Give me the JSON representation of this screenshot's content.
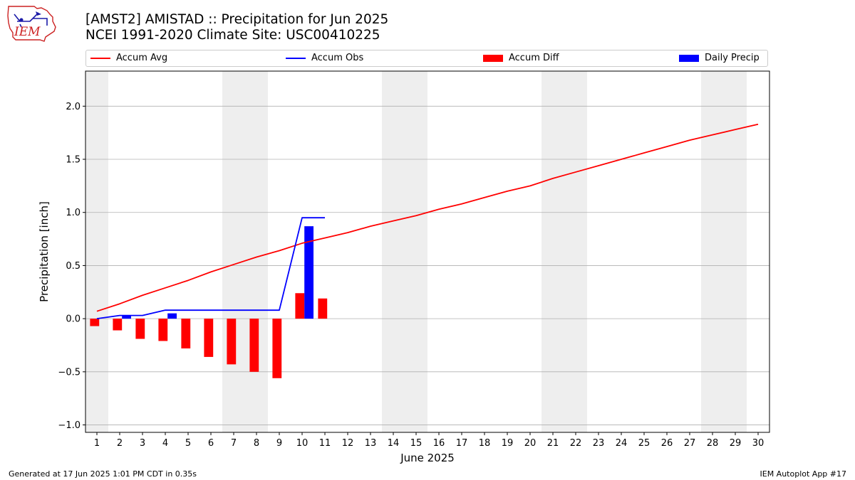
{
  "header": {
    "title_line1": "[AMST2] AMISTAD :: Precipitation for Jun 2025",
    "title_line2": "NCEI 1991-2020 Climate Site: USC00410225"
  },
  "logo": {
    "text": "IEM"
  },
  "footer": {
    "left": "Generated at 17 Jun 2025 1:01 PM CDT in 0.35s",
    "right": "IEM Autoplot App #17"
  },
  "colors": {
    "accum_avg": "#ff0000",
    "accum_obs": "#0000ff",
    "accum_diff": "#ff0000",
    "daily_precip": "#0000ff",
    "weekend_band": "#eeeeee",
    "grid": "#b0b0b0"
  },
  "chart_data": {
    "type": "line",
    "title": "[AMST2] AMISTAD :: Precipitation for Jun 2025",
    "xlabel": "June 2025",
    "ylabel": "Precipitation [inch]",
    "xlim": [
      0.5,
      30.5
    ],
    "ylim": [
      -1.07,
      2.33
    ],
    "x_ticks": [
      1,
      2,
      3,
      4,
      5,
      6,
      7,
      8,
      9,
      10,
      11,
      12,
      13,
      14,
      15,
      16,
      17,
      18,
      19,
      20,
      21,
      22,
      23,
      24,
      25,
      26,
      27,
      28,
      29,
      30
    ],
    "y_ticks": [
      -1.0,
      -0.5,
      0.0,
      0.5,
      1.0,
      1.5,
      2.0
    ],
    "y_tick_labels": [
      "−1.0",
      "−0.5",
      "0.0",
      "0.5",
      "1.0",
      "1.5",
      "2.0"
    ],
    "grid": "horizontal",
    "legend_placement": "top",
    "weekend_days": [
      1,
      7,
      8,
      14,
      15,
      21,
      22,
      28,
      29
    ],
    "series": [
      {
        "name": "Accum Avg",
        "kind": "line",
        "x": [
          1,
          2,
          3,
          4,
          5,
          6,
          7,
          8,
          9,
          10,
          11,
          12,
          13,
          14,
          15,
          16,
          17,
          18,
          19,
          20,
          21,
          22,
          23,
          24,
          25,
          26,
          27,
          28,
          29,
          30
        ],
        "values": [
          0.07,
          0.14,
          0.22,
          0.29,
          0.36,
          0.44,
          0.51,
          0.58,
          0.64,
          0.71,
          0.76,
          0.81,
          0.87,
          0.92,
          0.97,
          1.03,
          1.08,
          1.14,
          1.2,
          1.25,
          1.32,
          1.38,
          1.44,
          1.5,
          1.56,
          1.62,
          1.68,
          1.73,
          1.78,
          1.83
        ]
      },
      {
        "name": "Accum Obs",
        "kind": "line",
        "x": [
          1,
          2,
          3,
          4,
          5,
          6,
          7,
          8,
          9,
          10,
          11
        ],
        "values": [
          0.0,
          0.03,
          0.03,
          0.08,
          0.08,
          0.08,
          0.08,
          0.08,
          0.08,
          0.95,
          0.95
        ]
      },
      {
        "name": "Accum Diff",
        "kind": "bar",
        "x": [
          1,
          2,
          3,
          4,
          5,
          6,
          7,
          8,
          9,
          10,
          11
        ],
        "values": [
          -0.07,
          -0.11,
          -0.19,
          -0.21,
          -0.28,
          -0.36,
          -0.43,
          -0.5,
          -0.56,
          0.24,
          0.19
        ]
      },
      {
        "name": "Daily Precip",
        "kind": "bar",
        "x": [
          2,
          4,
          10
        ],
        "values": [
          0.03,
          0.05,
          0.87
        ]
      }
    ]
  }
}
